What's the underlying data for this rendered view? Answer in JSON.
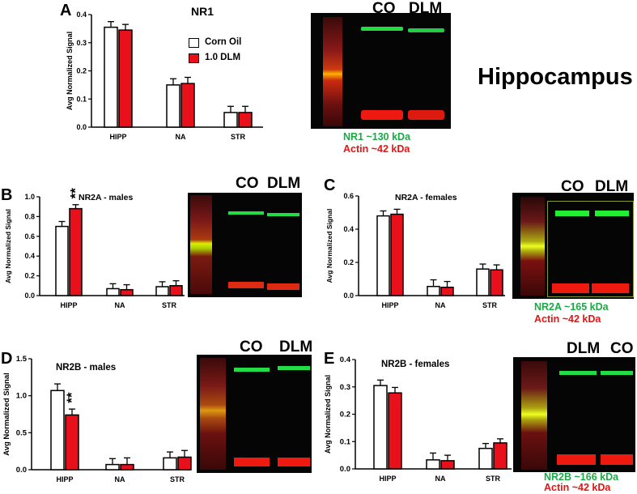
{
  "panels": {
    "A": {
      "letter": "A",
      "title": "NR1",
      "ylabel": "Avg Normalized Signal",
      "ticks": [
        "0.0",
        "0.1",
        "0.2",
        "0.3",
        "0.4"
      ],
      "blot_head": [
        "CO",
        "DLM"
      ],
      "caption_green": "NR1 ~130 kDa",
      "caption_red": "Actin ~42 kDa"
    },
    "B": {
      "letter": "B",
      "title": "NR2A - males",
      "ylabel": "Avg Normalized Signal",
      "ticks": [
        "0.0",
        "0.2",
        "0.4",
        "0.6",
        "0.8",
        "1.0"
      ],
      "sig": "**",
      "blot_head": [
        "CO",
        "DLM"
      ]
    },
    "C": {
      "letter": "C",
      "title": "NR2A - females",
      "ylabel": "Avg Normalized Signal",
      "ticks": [
        "0.0",
        "0.2",
        "0.4",
        "0.6"
      ],
      "blot_head": [
        "CO",
        "DLM"
      ],
      "caption_green": "NR2A ~165 kDa",
      "caption_red": "Actin ~42 kDa"
    },
    "D": {
      "letter": "D",
      "title": "NR2B - males",
      "ylabel": "Avg Normalized Signal",
      "ticks": [
        "0.0",
        "0.5",
        "1.0",
        "1.5"
      ],
      "sig": "**",
      "blot_head": [
        "CO",
        "DLM"
      ]
    },
    "E": {
      "letter": "E",
      "title": "NR2B - females",
      "ylabel": "Avg Normalized Signal",
      "ticks": [
        "0.0",
        "0.1",
        "0.2",
        "0.3",
        "0.4"
      ],
      "blot_head": [
        "DLM",
        "CO"
      ],
      "caption_green": "NR2B ~166 kDa",
      "caption_red": "Actin ~42 kDa"
    }
  },
  "region_label": "Hippocampus",
  "legend": {
    "items": [
      "Corn Oil",
      "1.0 DLM"
    ]
  },
  "colors": {
    "corn_oil": "#ffffff",
    "dlm": "#e8101a",
    "green_band": "#22dd44",
    "red_band": "#ee1a10",
    "caption_green": "#1aaa44",
    "caption_red": "#ee1111"
  },
  "chart_data": [
    {
      "type": "bar",
      "title": "NR1",
      "ylabel": "Avg Normalized Signal",
      "ylim": [
        0,
        0.4
      ],
      "categories": [
        "HIPP",
        "NA",
        "STR"
      ],
      "series": [
        {
          "name": "Corn Oil",
          "values": [
            0.355,
            0.15,
            0.052
          ],
          "errors": [
            0.02,
            0.022,
            0.022
          ]
        },
        {
          "name": "1.0 DLM",
          "values": [
            0.345,
            0.155,
            0.052
          ],
          "errors": [
            0.02,
            0.022,
            0.022
          ]
        }
      ]
    },
    {
      "type": "bar",
      "title": "NR2A - males",
      "ylabel": "Avg Normalized Signal",
      "ylim": [
        0,
        1.0
      ],
      "categories": [
        "HIPP",
        "NA",
        "STR"
      ],
      "series": [
        {
          "name": "Corn Oil",
          "values": [
            0.7,
            0.07,
            0.09
          ],
          "errors": [
            0.05,
            0.05,
            0.05
          ]
        },
        {
          "name": "1.0 DLM",
          "values": [
            0.88,
            0.06,
            0.1
          ],
          "errors": [
            0.04,
            0.05,
            0.05
          ]
        }
      ]
    },
    {
      "type": "bar",
      "title": "NR2A - females",
      "ylabel": "Avg Normalized Signal",
      "ylim": [
        0,
        0.6
      ],
      "categories": [
        "HIPP",
        "NA",
        "STR"
      ],
      "series": [
        {
          "name": "Corn Oil",
          "values": [
            0.48,
            0.055,
            0.16
          ],
          "errors": [
            0.03,
            0.04,
            0.03
          ]
        },
        {
          "name": "1.0 DLM",
          "values": [
            0.49,
            0.05,
            0.155
          ],
          "errors": [
            0.03,
            0.035,
            0.03
          ]
        }
      ]
    },
    {
      "type": "bar",
      "title": "NR2B - males",
      "ylabel": "Avg Normalized Signal",
      "ylim": [
        0,
        1.5
      ],
      "categories": [
        "HIPP",
        "NA",
        "STR"
      ],
      "series": [
        {
          "name": "Corn Oil",
          "values": [
            1.07,
            0.07,
            0.16
          ],
          "errors": [
            0.09,
            0.08,
            0.08
          ]
        },
        {
          "name": "1.0 DLM",
          "values": [
            0.74,
            0.07,
            0.17
          ],
          "errors": [
            0.08,
            0.09,
            0.09
          ]
        }
      ]
    },
    {
      "type": "bar",
      "title": "NR2B - females",
      "ylabel": "Avg Normalized Signal",
      "ylim": [
        0,
        0.4
      ],
      "categories": [
        "HIPP",
        "NA",
        "STR"
      ],
      "series": [
        {
          "name": "Corn Oil",
          "values": [
            0.305,
            0.033,
            0.075
          ],
          "errors": [
            0.02,
            0.025,
            0.018
          ]
        },
        {
          "name": "1.0 DLM",
          "values": [
            0.278,
            0.03,
            0.095
          ],
          "errors": [
            0.02,
            0.02,
            0.015
          ]
        }
      ]
    }
  ]
}
